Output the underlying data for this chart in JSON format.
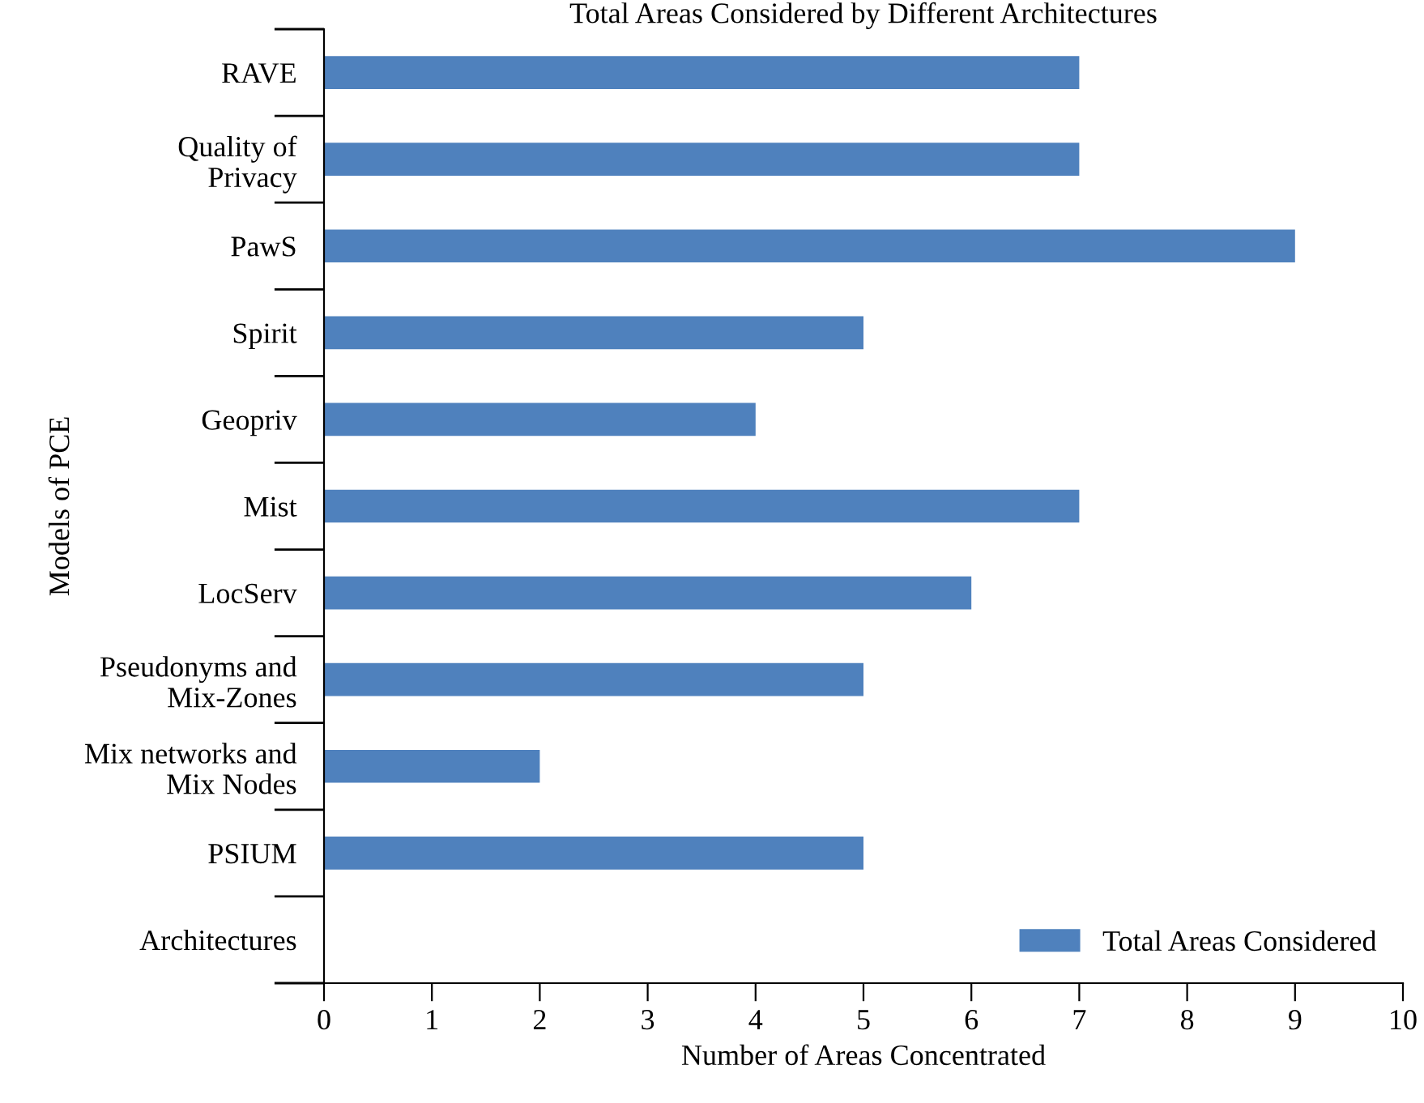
{
  "chart_data": {
    "type": "bar",
    "orientation": "horizontal",
    "title": "Total Areas Considered by Different Architectures",
    "xlabel": "Number of Areas Concentrated",
    "ylabel": "Models of PCE",
    "categories": [
      "RAVE",
      "Quality of\nPrivacy",
      "PawS",
      "Spirit",
      "Geopriv",
      "Mist",
      "LocServ",
      "Pseudonyms and\nMix-Zones",
      "Mix networks and\nMix Nodes",
      "PSIUM",
      "Architectures"
    ],
    "series": [
      {
        "name": "Total Areas Considered",
        "color": "#4f81bd",
        "values": [
          7,
          7,
          9,
          5,
          4,
          7,
          6,
          5,
          2,
          5,
          null
        ]
      }
    ],
    "xlim": [
      0,
      10
    ],
    "xticks": [
      0,
      1,
      2,
      3,
      4,
      5,
      6,
      7,
      8,
      9,
      10
    ],
    "grid": false,
    "legend": "bottom right"
  }
}
